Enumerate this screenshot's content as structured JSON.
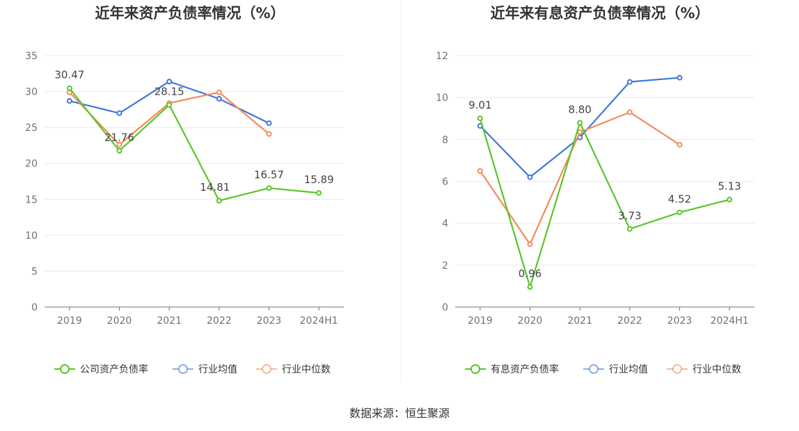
{
  "chart_data": [
    {
      "type": "line",
      "title": "近年来资产负债率情况（%）",
      "categories": [
        "2019",
        "2020",
        "2021",
        "2022",
        "2023",
        "2024H1"
      ],
      "ylim": [
        0,
        35
      ],
      "yticks": [
        0,
        5,
        10,
        15,
        20,
        25,
        30,
        35
      ],
      "grid": true,
      "legend_position": "bottom",
      "series": [
        {
          "name": "公司资产负债率",
          "color": "#5ac527",
          "values": [
            30.47,
            21.76,
            28.15,
            14.81,
            16.57,
            15.89
          ],
          "labels": [
            "30.47",
            "21.76",
            "28.15",
            "14.81",
            "16.57",
            "15.89"
          ]
        },
        {
          "name": "行业均值",
          "color": "#3c78d8",
          "values": [
            28.7,
            27.0,
            31.4,
            29.0,
            25.6,
            null
          ]
        },
        {
          "name": "行业中位数",
          "color": "#f28c5a",
          "values": [
            29.9,
            22.6,
            28.4,
            29.9,
            24.1,
            null
          ]
        }
      ]
    },
    {
      "type": "line",
      "title": "近年来有息资产负债率情况（%）",
      "categories": [
        "2019",
        "2020",
        "2021",
        "2022",
        "2023",
        "2024H1"
      ],
      "ylim": [
        0,
        12
      ],
      "yticks": [
        0,
        2,
        4,
        6,
        8,
        10,
        12
      ],
      "grid": true,
      "legend_position": "bottom",
      "series": [
        {
          "name": "有息资产负债率",
          "color": "#5ac527",
          "values": [
            9.01,
            0.96,
            8.8,
            3.73,
            4.52,
            5.13
          ],
          "labels": [
            "9.01",
            "0.96",
            "8.80",
            "3.73",
            "4.52",
            "5.13"
          ]
        },
        {
          "name": "行业均值",
          "color": "#3c78d8",
          "values": [
            8.65,
            6.2,
            8.1,
            10.75,
            10.95,
            null
          ]
        },
        {
          "name": "行业中位数",
          "color": "#f28c5a",
          "values": [
            6.5,
            3.0,
            8.35,
            9.3,
            7.75,
            null
          ]
        }
      ]
    }
  ],
  "source": "数据来源：恒生聚源"
}
